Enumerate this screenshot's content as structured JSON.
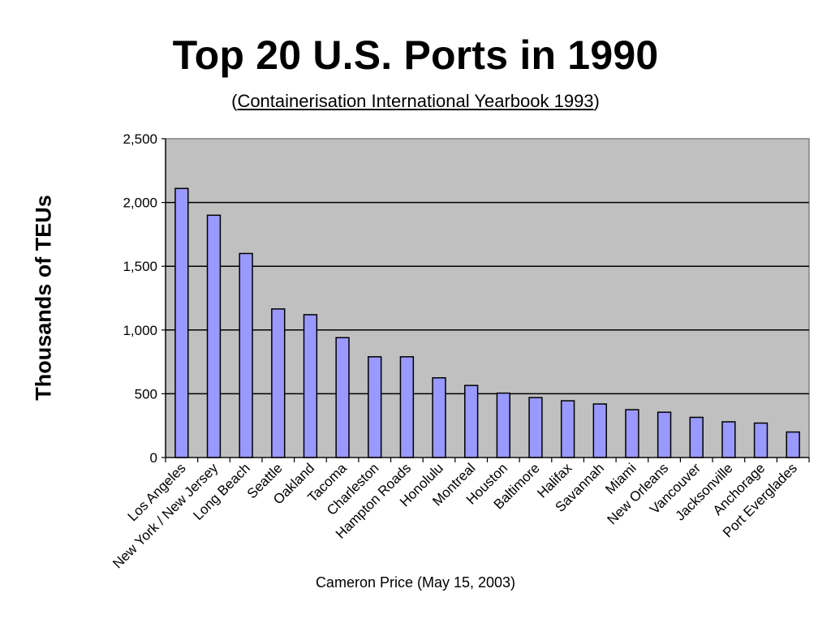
{
  "slide": {
    "title": "Top 20 U.S. Ports in 1990",
    "subtitle_open": "(",
    "subtitle_source": "Containerisation International Yearbook 1993",
    "subtitle_close": ")",
    "credit": "Cameron Price (May 15, 2003)"
  },
  "chart_data": {
    "type": "bar",
    "title": "",
    "xlabel": "",
    "ylabel": "Thousands of TEUs",
    "ylim": [
      0,
      2500
    ],
    "yticks": [
      0,
      500,
      1000,
      1500,
      2000,
      2500
    ],
    "ytick_labels": [
      "0",
      "500",
      "1,000",
      "1,500",
      "2,000",
      "2,500"
    ],
    "grid": true,
    "legend": "none",
    "categories": [
      "Los Angeles",
      "New York / New Jersey",
      "Long Beach",
      "Seattle",
      "Oakland",
      "Tacoma",
      "Charleston",
      "Hampton Roads",
      "Honolulu",
      "Montreal",
      "Houston",
      "Baltimore",
      "Halifax",
      "Savannah",
      "Miami",
      "New Orleans",
      "Vancouver",
      "Jacksonville",
      "Anchorage",
      "Port Everglades"
    ],
    "values": [
      2110,
      1900,
      1600,
      1165,
      1120,
      940,
      790,
      790,
      625,
      565,
      505,
      470,
      445,
      420,
      375,
      355,
      315,
      280,
      270,
      200
    ],
    "colors": {
      "bar_fill": "#9999ff",
      "bar_stroke": "#000000",
      "plot_background": "#c0c0c0",
      "gridline": "#000000"
    }
  }
}
